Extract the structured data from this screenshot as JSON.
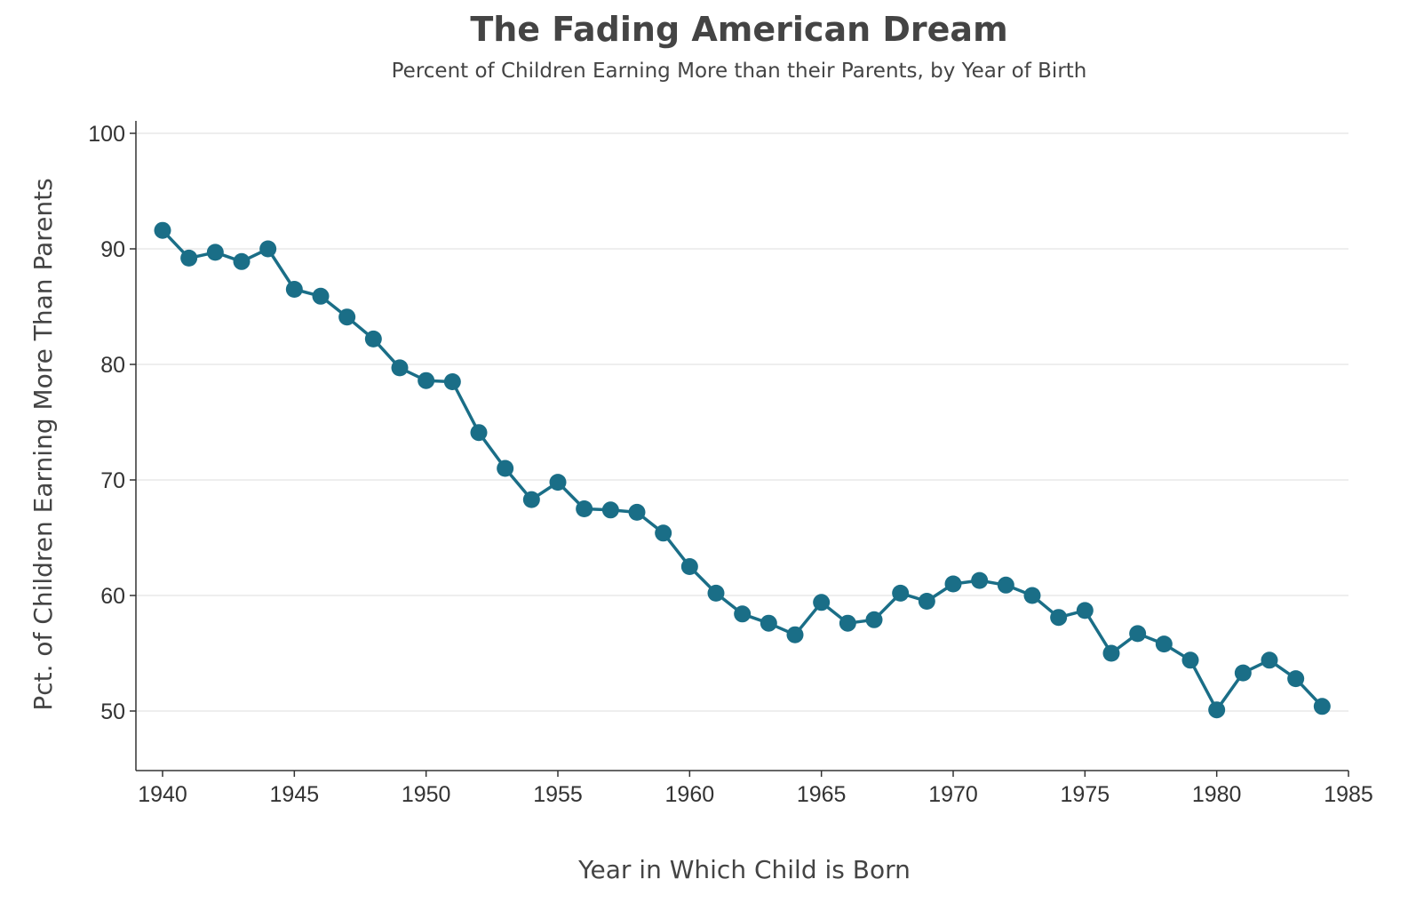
{
  "colors": {
    "series": "#1a6e87",
    "text": "#444444",
    "grid": "#e8e8e8",
    "axis": "#333333"
  },
  "chart_data": {
    "type": "line",
    "title": "The Fading American Dream",
    "subtitle": "Percent of Children Earning More than their Parents, by Year of Birth",
    "xlabel": "Year in Which Child is Born",
    "ylabel": "Pct. of Children Earning More Than Parents",
    "xlim": [
      1939,
      1985
    ],
    "ylim": [
      45,
      101
    ],
    "x_ticks": [
      1940,
      1945,
      1950,
      1955,
      1960,
      1965,
      1970,
      1975,
      1980,
      1985
    ],
    "y_ticks": [
      50,
      60,
      70,
      80,
      90,
      100
    ],
    "grid": "horizontal",
    "markers": true,
    "x": [
      1940,
      1941,
      1942,
      1943,
      1944,
      1945,
      1946,
      1947,
      1948,
      1949,
      1950,
      1951,
      1952,
      1953,
      1954,
      1955,
      1956,
      1957,
      1958,
      1959,
      1960,
      1961,
      1962,
      1963,
      1964,
      1965,
      1966,
      1967,
      1968,
      1969,
      1970,
      1971,
      1972,
      1973,
      1974,
      1975,
      1976,
      1977,
      1978,
      1979,
      1980,
      1981,
      1982,
      1983,
      1984
    ],
    "y": [
      91.6,
      89.2,
      89.7,
      88.9,
      90.0,
      86.5,
      85.9,
      84.1,
      82.2,
      79.7,
      78.6,
      78.5,
      74.1,
      71.0,
      68.3,
      69.8,
      67.5,
      67.4,
      67.2,
      65.4,
      62.5,
      60.2,
      58.4,
      57.6,
      56.6,
      59.4,
      57.6,
      57.9,
      60.2,
      59.5,
      61.0,
      61.3,
      60.9,
      60.0,
      58.1,
      58.7,
      55.0,
      56.7,
      55.8,
      54.4,
      50.1,
      53.3,
      54.4,
      52.8,
      50.4
    ]
  }
}
